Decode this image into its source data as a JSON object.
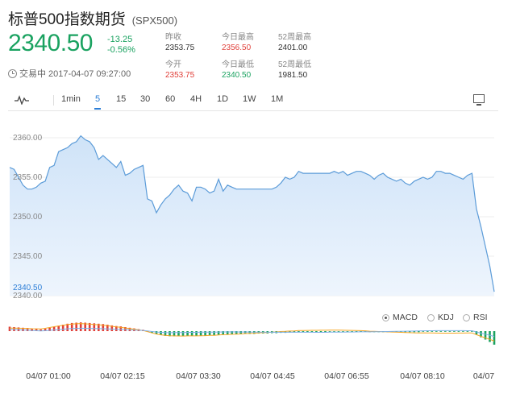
{
  "header": {
    "title": "标普500指数期货",
    "symbol": "(SPX500)",
    "price": "2340.50",
    "change": "-13.25",
    "change_pct": "-0.56%",
    "status": "交易中 2017-04-07 09:27:00"
  },
  "stats": {
    "prev_close_label": "昨收",
    "prev_close": "2353.75",
    "day_high_label": "今日最高",
    "day_high": "2356.50",
    "wk52_high_label": "52周最高",
    "wk52_high": "2401.00",
    "open_label": "今开",
    "open": "2353.75",
    "day_low_label": "今日最低",
    "day_low": "2340.50",
    "wk52_low_label": "52周最低",
    "wk52_low": "1981.50"
  },
  "toolbar": {
    "icon": "line-chart-icon",
    "intervals": [
      "1min",
      "5",
      "15",
      "30",
      "60",
      "4H",
      "1D",
      "1W",
      "1M"
    ],
    "active": "5",
    "right_icon": "monitor-icon"
  },
  "indicators": {
    "options": [
      "MACD",
      "KDJ",
      "RSI"
    ],
    "selected": "MACD"
  },
  "colors": {
    "up": "#e0403a",
    "down": "#1aa260",
    "line": "#5b9bd8",
    "fill": "#d6e8fa",
    "accent": "#2c7ed6"
  },
  "chart_data": {
    "type": "area",
    "y_ticks": [
      "2360.00",
      "2355.00",
      "2350.00",
      "2345.00",
      "2340.00"
    ],
    "ylim": [
      2340,
      2360
    ],
    "last_label": "2340.50",
    "x_ticks": [
      "04/07 01:00",
      "04/07 02:15",
      "04/07 03:30",
      "04/07 04:45",
      "04/07 06:55",
      "04/07 08:10",
      "04/07"
    ],
    "values": [
      2356.25,
      2356.0,
      2355.0,
      2354.0,
      2353.5,
      2353.5,
      2353.75,
      2354.25,
      2354.5,
      2356.25,
      2356.5,
      2358.25,
      2358.5,
      2358.75,
      2359.25,
      2359.5,
      2360.25,
      2359.75,
      2359.5,
      2358.75,
      2357.25,
      2357.75,
      2357.25,
      2356.75,
      2356.25,
      2357.0,
      2355.25,
      2355.5,
      2356.0,
      2356.25,
      2356.5,
      2352.25,
      2352.0,
      2350.5,
      2351.5,
      2352.25,
      2352.75,
      2353.5,
      2354.0,
      2353.25,
      2353.0,
      2352.0,
      2353.75,
      2353.75,
      2353.5,
      2353.0,
      2353.25,
      2354.75,
      2353.25,
      2354.0,
      2353.75,
      2353.5,
      2353.5,
      2353.5,
      2353.5,
      2353.5,
      2353.5,
      2353.5,
      2353.5,
      2353.5,
      2353.75,
      2354.25,
      2355.0,
      2354.75,
      2355.0,
      2355.75,
      2355.5,
      2355.5,
      2355.5,
      2355.5,
      2355.5,
      2355.5,
      2355.5,
      2355.75,
      2355.5,
      2355.75,
      2355.25,
      2355.5,
      2355.75,
      2355.75,
      2355.5,
      2355.25,
      2354.75,
      2355.25,
      2355.5,
      2355.0,
      2354.75,
      2354.5,
      2354.75,
      2354.25,
      2354.0,
      2354.5,
      2354.75,
      2355.0,
      2354.75,
      2355.0,
      2355.75,
      2355.75,
      2355.5,
      2355.5,
      2355.25,
      2355.0,
      2354.75,
      2355.25,
      2355.5,
      2351.0,
      2348.75,
      2346.25,
      2343.75,
      2340.5
    ],
    "macd": [
      1.3,
      1.2,
      1.1,
      1.0,
      0.9,
      0.7,
      0.6,
      0.5,
      0.7,
      1.0,
      1.3,
      1.6,
      1.9,
      2.2,
      2.4,
      2.5,
      2.6,
      2.5,
      2.4,
      2.3,
      2.2,
      2.1,
      1.9,
      1.7,
      1.5,
      1.4,
      1.2,
      1.0,
      0.8,
      0.6,
      0.4,
      0.0,
      -0.5,
      -0.9,
      -1.2,
      -1.4,
      -1.5,
      -1.5,
      -1.5,
      -1.5,
      -1.4,
      -1.4,
      -1.4,
      -1.3,
      -1.3,
      -1.2,
      -1.2,
      -1.1,
      -1.0,
      -1.0,
      -0.9,
      -0.9,
      -0.9,
      -0.8,
      -0.8,
      -0.8,
      -0.7,
      -0.7,
      -0.7,
      -0.6,
      -0.6,
      -0.5,
      -0.5,
      -0.4,
      -0.4,
      -0.3,
      -0.3,
      -0.3,
      -0.3,
      -0.3,
      -0.3,
      -0.3,
      -0.2,
      -0.2,
      -0.2,
      -0.2,
      -0.2,
      -0.2,
      -0.2,
      -0.2,
      -0.2,
      -0.3,
      -0.3,
      -0.3,
      -0.3,
      -0.3,
      -0.3,
      -0.3,
      -0.3,
      -0.3,
      -0.3,
      -0.3,
      -0.3,
      -0.2,
      -0.2,
      -0.2,
      -0.2,
      -0.2,
      -0.2,
      -0.2,
      -0.2,
      -0.2,
      -0.2,
      -0.2,
      -0.2,
      -1.0,
      -1.8,
      -2.5,
      -3.2,
      -4.0
    ]
  }
}
